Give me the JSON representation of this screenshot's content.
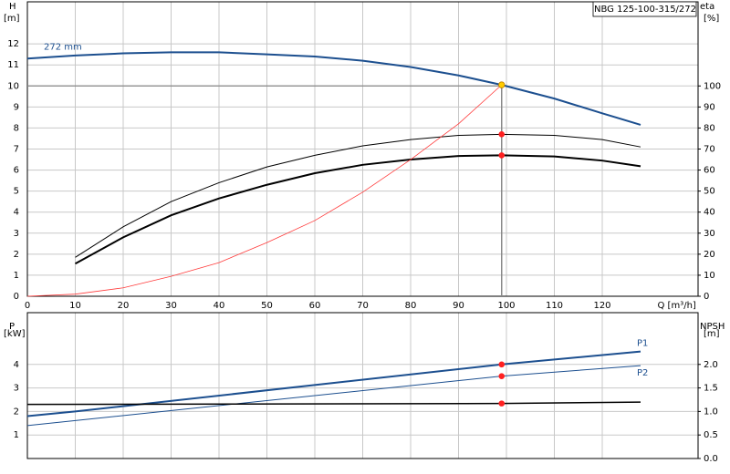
{
  "chart_data": [
    {
      "type": "line",
      "title": "NBG 125-100-315/272",
      "ylabel": "H",
      "yunit": "[m]",
      "y2label": "eta",
      "y2unit": "[%]",
      "xlabel": "Q [m³/h]",
      "xlim": [
        0,
        140
      ],
      "xticks": [
        0,
        10,
        20,
        30,
        40,
        50,
        60,
        70,
        80,
        90,
        100,
        110,
        120
      ],
      "ylim": [
        0,
        14
      ],
      "yticks": [
        0,
        1,
        2,
        3,
        4,
        5,
        6,
        7,
        8,
        9,
        10,
        11,
        12
      ],
      "y2lim": [
        0,
        140
      ],
      "y2ticks": [
        0,
        10,
        20,
        30,
        40,
        50,
        60,
        70,
        80,
        90,
        100
      ],
      "grid": true,
      "show_xtick_labels": true,
      "series": [
        {
          "name": "272 mm",
          "color": "#1c4f8f",
          "width": 2,
          "x": [
            0,
            10,
            20,
            30,
            40,
            50,
            60,
            70,
            80,
            90,
            99,
            110,
            120,
            128
          ],
          "values": [
            11.3,
            11.45,
            11.55,
            11.6,
            11.6,
            11.5,
            11.4,
            11.2,
            10.9,
            10.5,
            10.05,
            9.4,
            8.7,
            8.15
          ]
        },
        {
          "color": "#000000",
          "width": 1,
          "axis": "y2",
          "x": [
            10,
            20,
            30,
            40,
            50,
            60,
            70,
            80,
            90,
            99,
            110,
            120,
            128
          ],
          "values": [
            18.5,
            33,
            45,
            54,
            61.5,
            67,
            71.5,
            74.5,
            76.5,
            77,
            76.5,
            74.5,
            71
          ]
        },
        {
          "color": "#000000",
          "width": 2,
          "axis": "y2",
          "x": [
            10,
            20,
            30,
            40,
            50,
            60,
            70,
            80,
            90,
            99,
            110,
            120,
            128
          ],
          "values": [
            15.5,
            28,
            38.5,
            46.5,
            53,
            58.5,
            62.5,
            65,
            66.7,
            67,
            66.5,
            64.5,
            61.8
          ]
        },
        {
          "color": "#ff3b3b",
          "width": 0.8,
          "x": [
            0,
            10,
            20,
            30,
            40,
            50,
            60,
            70,
            80,
            90,
            99
          ],
          "values": [
            0,
            0.1,
            0.4,
            0.95,
            1.6,
            2.55,
            3.6,
            4.95,
            6.5,
            8.2,
            10.05
          ]
        }
      ],
      "duty_point": {
        "x": 99,
        "y": 10
      },
      "points": [
        {
          "x": 99,
          "y": 10.05,
          "color": "#ffcc00"
        },
        {
          "x": 99,
          "y": 77,
          "axis": "y2",
          "color": "#ff2020"
        },
        {
          "x": 99,
          "y": 67,
          "axis": "y2",
          "color": "#ff2020"
        }
      ]
    },
    {
      "type": "line",
      "ylabel": "P",
      "yunit": "[kW]",
      "y2label": "NPSH",
      "y2unit": "[m]",
      "xlim": [
        0,
        140
      ],
      "xticks": [
        0,
        10,
        20,
        30,
        40,
        50,
        60,
        70,
        80,
        90,
        100,
        110,
        120
      ],
      "ylim": [
        0,
        6.2
      ],
      "yticks": [
        1,
        2,
        3,
        4
      ],
      "y2lim": [
        0,
        3.1
      ],
      "y2ticks": [
        {
          "value": 0,
          "label": "0.0"
        },
        0.5,
        {
          "value": 1,
          "label": "1.0"
        },
        1.5,
        {
          "value": 2,
          "label": "2.0"
        }
      ],
      "grid": true,
      "show_xtick_labels": false,
      "series": [
        {
          "name": "P1",
          "color": "#1c4f8f",
          "width": 2,
          "x": [
            0,
            10,
            99,
            128
          ],
          "values": [
            1.8,
            2.0,
            4.0,
            4.55
          ]
        },
        {
          "name": "P2",
          "color": "#1c4f8f",
          "width": 1,
          "x": [
            0,
            99,
            128
          ],
          "values": [
            1.4,
            3.5,
            3.95
          ]
        },
        {
          "color": "#000000",
          "width": 1.5,
          "axis": "y2",
          "x": [
            0,
            99,
            128
          ],
          "values": [
            1.15,
            1.17,
            1.2
          ]
        }
      ],
      "points": [
        {
          "x": 99,
          "y": 4.0,
          "color": "#ff2020"
        },
        {
          "x": 99,
          "y": 3.5,
          "color": "#ff2020"
        },
        {
          "x": 99,
          "y": 1.17,
          "axis": "y2",
          "color": "#ff2020"
        }
      ]
    }
  ]
}
